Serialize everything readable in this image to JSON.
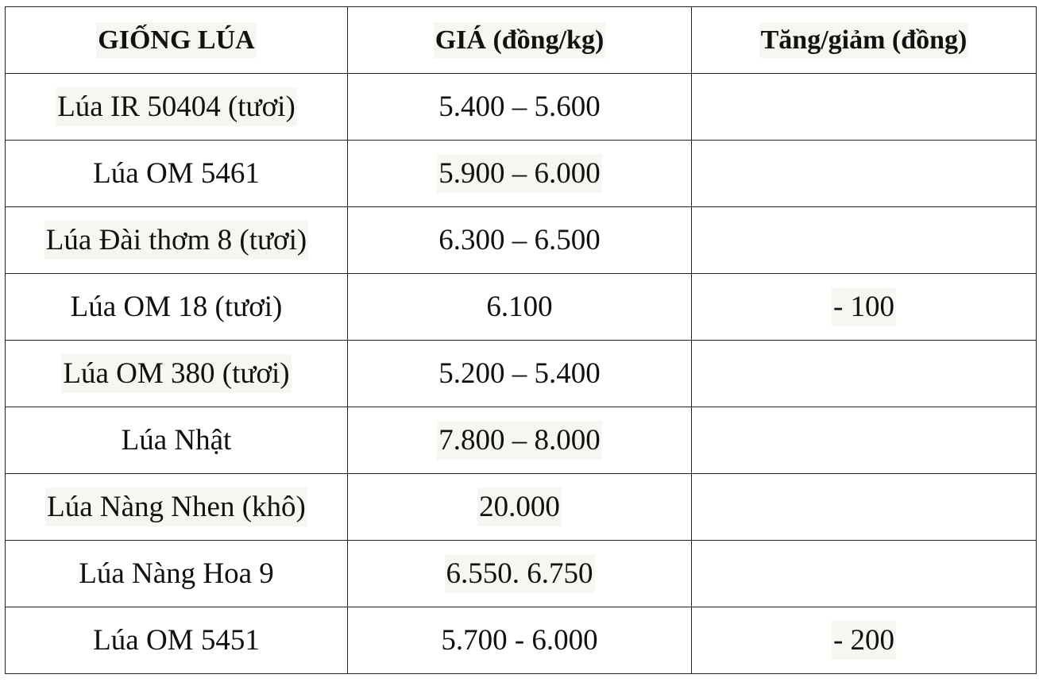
{
  "table": {
    "header": [
      "GIỐNG LÚA",
      "GIÁ (đồng/kg)",
      "Tăng/giảm (đồng)"
    ],
    "rows": [
      [
        "Lúa IR 50404 (tươi)",
        "5.400 – 5.600"
      ],
      [
        "Lúa OM 5461",
        "5.900 – 6.000"
      ],
      [
        "Lúa Đài thơm 8 (tươi)",
        "6.300 – 6.500"
      ],
      [
        "Lúa OM 18 (tươi)",
        "6.100",
        "- 100"
      ],
      [
        "Lúa OM 380 (tươi)",
        "5.200 – 5.400"
      ],
      [
        "Lúa Nhật",
        "7.800 – 8.000"
      ],
      [
        "Lúa Nàng Nhen (khô)",
        "20.000"
      ],
      [
        "Lúa Nàng Hoa 9",
        "6.550. 6.750"
      ],
      [
        "Lúa OM 5451",
        "5.700 - 6.000",
        "- 200"
      ]
    ]
  }
}
